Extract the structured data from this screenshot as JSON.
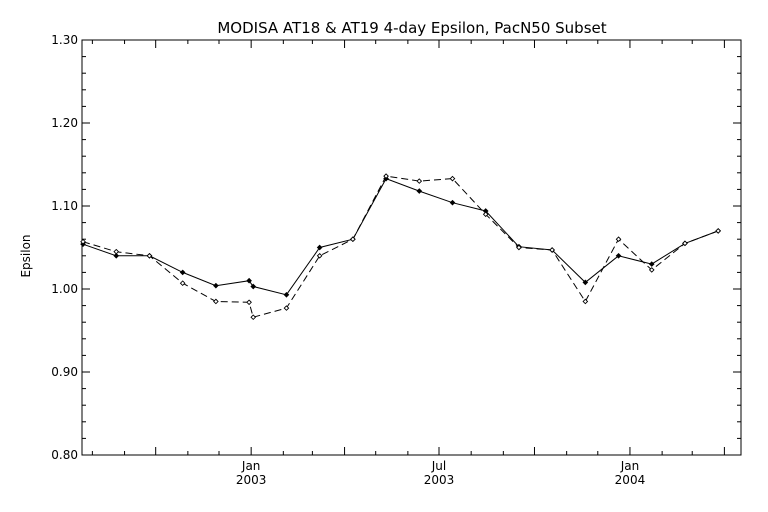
{
  "chart_data": {
    "type": "line",
    "title": "MODISA AT18 & AT19 4-day Epsilon, PacN50 Subset",
    "ylabel": "Epsilon",
    "xlabel": "",
    "ylim": [
      0.8,
      1.3
    ],
    "xlim": [
      "2002-07-22",
      "2004-04-17"
    ],
    "yticks": [
      "0.80",
      "0.90",
      "1.00",
      "1.10",
      "1.20",
      "1.30"
    ],
    "xticks": [
      {
        "date": "2003-01-01",
        "month": "Jan",
        "year": "2003"
      },
      {
        "date": "2003-07-01",
        "month": "Jul",
        "year": "2003"
      },
      {
        "date": "2004-01-01",
        "month": "Jan",
        "year": "2004"
      }
    ],
    "grid": false,
    "series": [
      {
        "style": "solid",
        "points": [
          {
            "x": "2002-07-23",
            "y": 1.054
          },
          {
            "x": "2002-08-24",
            "y": 1.04
          },
          {
            "x": "2002-09-25",
            "y": 1.04
          },
          {
            "x": "2002-10-27",
            "y": 1.02
          },
          {
            "x": "2002-11-28",
            "y": 1.004
          },
          {
            "x": "2002-12-30",
            "y": 1.01
          },
          {
            "x": "2003-01-03",
            "y": 1.003
          },
          {
            "x": "2003-02-04",
            "y": 0.993
          },
          {
            "x": "2003-03-08",
            "y": 1.05
          },
          {
            "x": "2003-04-09",
            "y": 1.06
          },
          {
            "x": "2003-05-11",
            "y": 1.133
          },
          {
            "x": "2003-06-12",
            "y": 1.118
          },
          {
            "x": "2003-07-14",
            "y": 1.104
          },
          {
            "x": "2003-08-15",
            "y": 1.094
          },
          {
            "x": "2003-09-16",
            "y": 1.051
          },
          {
            "x": "2003-10-18",
            "y": 1.047
          },
          {
            "x": "2003-11-19",
            "y": 1.008
          },
          {
            "x": "2003-12-21",
            "y": 1.04
          },
          {
            "x": "2004-01-22",
            "y": 1.03
          },
          {
            "x": "2004-02-23",
            "y": 1.055
          },
          {
            "x": "2004-03-26",
            "y": 1.07
          }
        ]
      },
      {
        "style": "dashed",
        "points": [
          {
            "x": "2002-07-23",
            "y": 1.057
          },
          {
            "x": "2002-08-24",
            "y": 1.045
          },
          {
            "x": "2002-09-25",
            "y": 1.04
          },
          {
            "x": "2002-10-27",
            "y": 1.007
          },
          {
            "x": "2002-11-28",
            "y": 0.985
          },
          {
            "x": "2002-12-30",
            "y": 0.984
          },
          {
            "x": "2003-01-03",
            "y": 0.966
          },
          {
            "x": "2003-02-04",
            "y": 0.977
          },
          {
            "x": "2003-03-08",
            "y": 1.04
          },
          {
            "x": "2003-04-09",
            "y": 1.06
          },
          {
            "x": "2003-05-11",
            "y": 1.136
          },
          {
            "x": "2003-06-12",
            "y": 1.13
          },
          {
            "x": "2003-07-14",
            "y": 1.133
          },
          {
            "x": "2003-08-15",
            "y": 1.09
          },
          {
            "x": "2003-09-16",
            "y": 1.05
          },
          {
            "x": "2003-10-18",
            "y": 1.047
          },
          {
            "x": "2003-11-19",
            "y": 0.985
          },
          {
            "x": "2003-12-21",
            "y": 1.06
          },
          {
            "x": "2004-01-22",
            "y": 1.023
          },
          {
            "x": "2004-02-23",
            "y": 1.055
          },
          {
            "x": "2004-03-26",
            "y": 1.07
          }
        ]
      }
    ]
  }
}
